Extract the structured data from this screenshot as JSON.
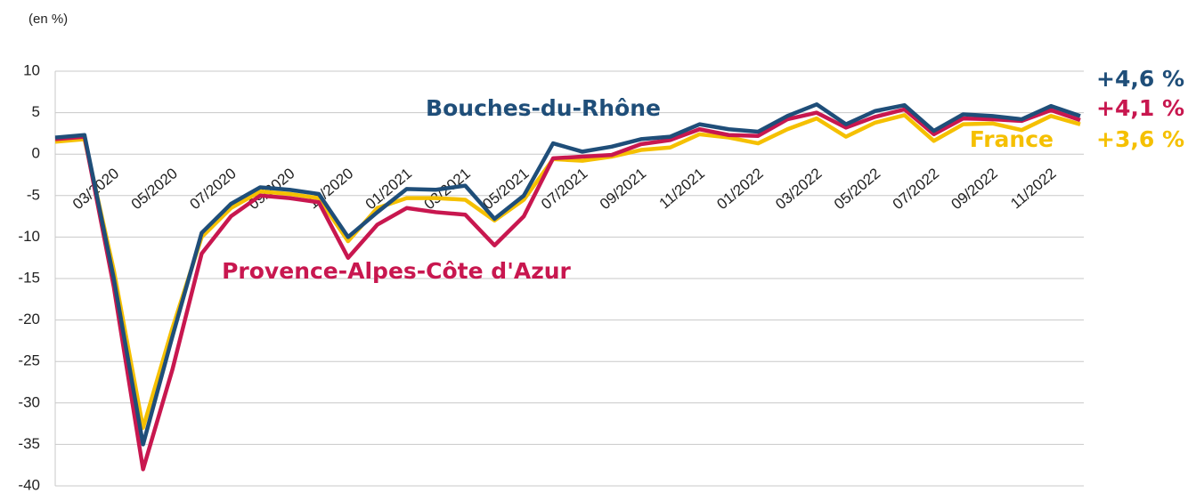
{
  "chart_data": {
    "type": "line",
    "unit_label": "(en %)",
    "categories": [
      null,
      null,
      "03/2020",
      null,
      "05/2020",
      null,
      "07/2020",
      null,
      "09/2020",
      null,
      "11/2020",
      null,
      "01/2021",
      null,
      "03/2021",
      null,
      "05/2021",
      null,
      "07/2021",
      null,
      "09/2021",
      null,
      "11/2021",
      null,
      "01/2022",
      null,
      "03/2022",
      null,
      "05/2022",
      null,
      "07/2022",
      null,
      "09/2022",
      null,
      "11/2022",
      null
    ],
    "series": [
      {
        "name": "Bouches-du-Rhône",
        "color": "#1f4e79",
        "end_label": "+4,6 %",
        "values": [
          2.0,
          2.3,
          -15,
          -35,
          -22,
          -9.5,
          -6,
          -4,
          -4.3,
          -4.8,
          -10,
          -7,
          -4.2,
          -4.3,
          -3.8,
          -7.8,
          -5,
          1.3,
          0.3,
          0.9,
          1.8,
          2.1,
          3.6,
          3.0,
          2.7,
          4.6,
          6.0,
          3.6,
          5.2,
          5.9,
          2.8,
          4.8,
          4.6,
          4.2,
          5.8,
          4.6
        ]
      },
      {
        "name": "Provence-Alpes-Côte d'Azur",
        "color": "#c8174f",
        "end_label": "+4,1 %",
        "values": [
          1.8,
          2.1,
          -16,
          -38,
          -26,
          -12,
          -7.5,
          -5,
          -5.3,
          -5.8,
          -12.5,
          -8.5,
          -6.5,
          -7,
          -7.3,
          -11,
          -7.5,
          -0.5,
          -0.3,
          -0.1,
          1.2,
          1.7,
          3.0,
          2.3,
          2.2,
          4.2,
          5.0,
          3.2,
          4.5,
          5.4,
          2.4,
          4.3,
          4.2,
          4.0,
          5.3,
          4.1
        ]
      },
      {
        "name": "France",
        "color": "#f5c000",
        "end_label": "+3,6 %",
        "values": [
          1.5,
          1.8,
          -14,
          -33,
          -21,
          -10,
          -6.5,
          -4.5,
          -4.8,
          -5.3,
          -10.5,
          -6.5,
          -5.3,
          -5.3,
          -5.5,
          -8,
          -5.5,
          -0.6,
          -0.8,
          -0.3,
          0.5,
          0.8,
          2.4,
          2.0,
          1.3,
          3.0,
          4.3,
          2.1,
          3.8,
          4.7,
          1.6,
          3.6,
          3.7,
          2.9,
          4.6,
          3.6
        ]
      }
    ],
    "ylim": [
      -40,
      10
    ],
    "yticks": [
      -40,
      -35,
      -30,
      -25,
      -20,
      -15,
      -10,
      -5,
      0,
      5,
      10
    ],
    "grid": true
  }
}
